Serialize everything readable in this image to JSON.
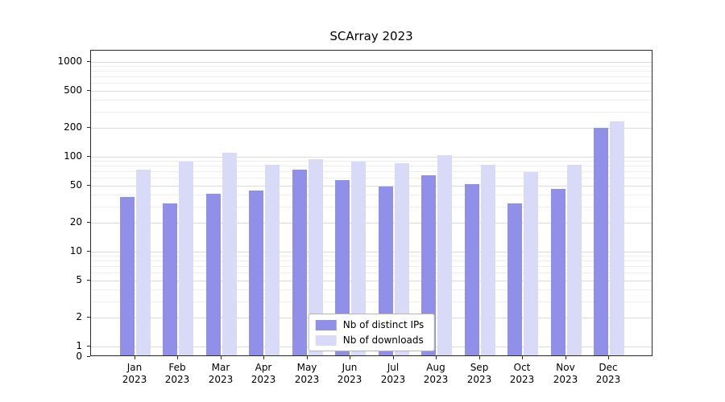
{
  "chart_data": {
    "type": "bar",
    "title": "SCArray 2023",
    "categories": [
      "Jan 2023",
      "Feb 2023",
      "Mar 2023",
      "Apr 2023",
      "May 2023",
      "Jun 2023",
      "Jul 2023",
      "Aug 2023",
      "Sep 2023",
      "Oct 2023",
      "Nov 2023",
      "Dec 2023"
    ],
    "series": [
      {
        "name": "Nb of distinct IPs",
        "color": "#9090e8",
        "values": [
          36,
          31,
          39,
          42,
          70,
          55,
          47,
          61,
          50,
          31,
          44,
          195
        ]
      },
      {
        "name": "Nb of downloads",
        "color": "#d9d9f8",
        "values": [
          70,
          86,
          105,
          79,
          90,
          85,
          83,
          100,
          79,
          67,
          79,
          225
        ]
      }
    ],
    "yscale": "symlog",
    "yticks": [
      0,
      1,
      2,
      5,
      10,
      20,
      50,
      100,
      200,
      500,
      1000
    ],
    "ylim": [
      0,
      1000
    ],
    "grid": true,
    "legend_position": "lower center"
  }
}
